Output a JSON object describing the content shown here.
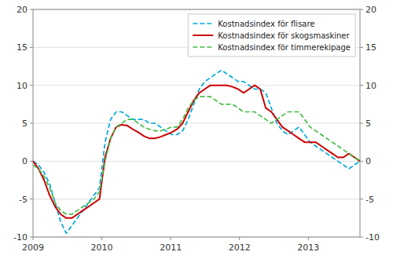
{
  "chart_data": {
    "type": "line",
    "title": "",
    "x": [
      2009.0,
      2009.0805,
      2009.161,
      2009.2415,
      2009.322,
      2009.4025,
      2009.4831,
      2009.5636,
      2009.6441,
      2009.7246,
      2009.8051,
      2009.8856,
      2009.9661,
      2010.0466,
      2010.1271,
      2010.2076,
      2010.2881,
      2010.3686,
      2010.4492,
      2010.5297,
      2010.6102,
      2010.6907,
      2010.7712,
      2010.8517,
      2010.9322,
      2011.0127,
      2011.0932,
      2011.1737,
      2011.2542,
      2011.3347,
      2011.4153,
      2011.4958,
      2011.5763,
      2011.6568,
      2011.7373,
      2011.8178,
      2011.8983,
      2011.9788,
      2012.0593,
      2012.1398,
      2012.2203,
      2012.3008,
      2012.3814,
      2012.4619,
      2012.5424,
      2012.6229,
      2012.7034,
      2012.7839,
      2012.8644,
      2012.9449,
      2013.0254,
      2013.1059,
      2013.1864,
      2013.2669,
      2013.3475,
      2013.428,
      2013.5085,
      2013.589,
      2013.6695,
      2013.75
    ],
    "xlim": [
      2009.0,
      2013.75
    ],
    "xticks": [
      2009,
      2010,
      2011,
      2012,
      2013
    ],
    "ylim": [
      -10,
      20
    ],
    "yticks": [
      -10,
      -5,
      0,
      5,
      10,
      15,
      20
    ],
    "y2lim": [
      -10,
      20
    ],
    "y2ticks": [
      -10,
      -5,
      0,
      5,
      10,
      15,
      20
    ],
    "grid": true,
    "legend": "upper right",
    "series": [
      {
        "name": "Kostnadsindex för flisare",
        "color": "#00aadd",
        "line_style": "dashed",
        "values": [
          0.0,
          -0.5,
          -1.5,
          -3.0,
          -5.5,
          -8.0,
          -9.5,
          -8.5,
          -7.5,
          -6.5,
          -5.5,
          -4.5,
          -3.5,
          2.5,
          5.5,
          6.5,
          6.5,
          6.0,
          5.5,
          5.5,
          5.5,
          5.0,
          5.0,
          4.5,
          4.0,
          3.5,
          3.5,
          4.0,
          5.5,
          7.5,
          9.5,
          10.5,
          11.0,
          11.5,
          12.0,
          11.5,
          11.0,
          10.5,
          10.5,
          10.0,
          9.5,
          9.5,
          9.0,
          7.0,
          5.0,
          4.0,
          3.5,
          4.0,
          4.5,
          3.5,
          2.5,
          2.0,
          1.5,
          1.0,
          0.5,
          0.0,
          -0.5,
          -1.0,
          -0.5,
          0.0
        ]
      },
      {
        "name": "Kostnadsindex för skogsmaskiner",
        "color": "#cc0000",
        "line_style": "solid",
        "values": [
          0.0,
          -1.0,
          -2.5,
          -4.5,
          -6.0,
          -7.0,
          -7.5,
          -7.5,
          -7.0,
          -6.5,
          -6.0,
          -5.5,
          -5.0,
          0.5,
          3.0,
          4.5,
          4.8,
          4.7,
          4.2,
          3.8,
          3.3,
          3.0,
          3.0,
          3.2,
          3.5,
          3.8,
          4.2,
          5.0,
          6.5,
          8.0,
          9.0,
          9.5,
          10.0,
          10.0,
          10.0,
          10.0,
          9.8,
          9.5,
          9.0,
          9.5,
          10.0,
          9.5,
          7.0,
          6.5,
          5.5,
          4.5,
          4.0,
          3.5,
          3.0,
          2.5,
          2.5,
          2.5,
          2.0,
          1.5,
          1.0,
          0.5,
          0.5,
          1.0,
          0.5,
          0.0
        ]
      },
      {
        "name": "Kostnadsindex för timmerekipage",
        "color": "#44bb44",
        "line_style": "dashed",
        "values": [
          -0.5,
          -1.0,
          -2.0,
          -3.5,
          -5.5,
          -6.5,
          -7.0,
          -7.0,
          -6.5,
          -6.0,
          -5.5,
          -5.0,
          -4.0,
          0.0,
          3.0,
          4.5,
          5.0,
          5.5,
          5.5,
          5.0,
          4.5,
          4.2,
          4.0,
          4.0,
          4.2,
          4.5,
          4.5,
          5.5,
          7.0,
          8.0,
          8.5,
          8.5,
          8.5,
          8.0,
          7.5,
          7.5,
          7.5,
          7.0,
          6.5,
          6.5,
          6.5,
          6.0,
          5.5,
          5.0,
          5.5,
          6.0,
          6.5,
          6.5,
          6.5,
          5.5,
          4.5,
          4.0,
          3.5,
          3.0,
          2.5,
          2.0,
          1.5,
          1.0,
          0.5,
          0.0
        ]
      }
    ]
  }
}
